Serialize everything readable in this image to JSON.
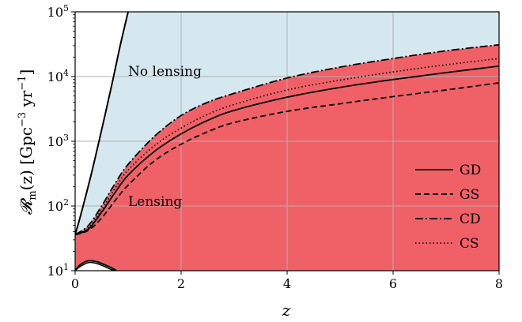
{
  "chart_data": {
    "type": "area",
    "title": "",
    "xlabel": "z",
    "ylabel_main": "𝓡",
    "ylabel_sub": "m",
    "ylabel_rest": "(z) [Gpc",
    "ylabel_exp1": "−3",
    "ylabel_mid": " yr",
    "ylabel_exp2": "−1",
    "ylabel_end": "]",
    "xlim": [
      0,
      8
    ],
    "ylim": [
      10,
      100000
    ],
    "yscale": "log",
    "grid": true,
    "x_ticks": [
      {
        "value": 0,
        "label": "0"
      },
      {
        "value": 2,
        "label": "2"
      },
      {
        "value": 4,
        "label": "4"
      },
      {
        "value": 6,
        "label": "6"
      },
      {
        "value": 8,
        "label": "8"
      }
    ],
    "y_ticks": [
      {
        "value": 10,
        "base": "10",
        "exp": "1"
      },
      {
        "value": 100,
        "base": "10",
        "exp": "2"
      },
      {
        "value": 1000,
        "base": "10",
        "exp": "3"
      },
      {
        "value": 10000,
        "base": "10",
        "exp": "4"
      },
      {
        "value": 100000,
        "base": "10",
        "exp": "5"
      }
    ],
    "regions": {
      "no_lensing": {
        "label": "No lensing",
        "color": "#d5e8f0"
      },
      "lensing": {
        "label": "Lensing",
        "color": "#ef6167"
      }
    },
    "x": [
      0,
      0.25,
      0.5,
      0.75,
      1,
      1.5,
      2,
      2.5,
      3,
      4,
      5,
      6,
      7,
      8
    ],
    "series": [
      {
        "name": "GD",
        "dash": "solid",
        "values": [
          36,
          44,
          80,
          160,
          300,
          700,
          1300,
          2100,
          3000,
          4800,
          6800,
          9000,
          11500,
          14500
        ]
      },
      {
        "name": "GS",
        "dash": "dashed",
        "values": [
          36,
          42,
          65,
          120,
          210,
          500,
          900,
          1400,
          1950,
          2900,
          3800,
          4900,
          6200,
          8000
        ]
      },
      {
        "name": "CD",
        "dash": "dashdot",
        "values": [
          36,
          50,
          100,
          220,
          440,
          1200,
          2500,
          4000,
          5500,
          9500,
          14000,
          19000,
          25000,
          31000
        ]
      },
      {
        "name": "CS",
        "dash": "dotted",
        "values": [
          36,
          46,
          88,
          185,
          360,
          860,
          1600,
          2600,
          3700,
          6200,
          8800,
          11800,
          15200,
          19000
        ]
      }
    ],
    "steep_line": {
      "x": [
        0,
        0.1,
        0.3,
        0.5,
        0.7,
        0.85,
        1.0
      ],
      "values": [
        36,
        70,
        300,
        1500,
        8000,
        30000,
        100000
      ]
    },
    "inner_loop": {
      "x": [
        0,
        0.1,
        0.25,
        0.4,
        0.55,
        0.7,
        0.78
      ],
      "values": [
        10,
        12.4,
        14.2,
        13.8,
        12.4,
        10.9,
        10
      ]
    },
    "legend_position": "lower-right"
  }
}
